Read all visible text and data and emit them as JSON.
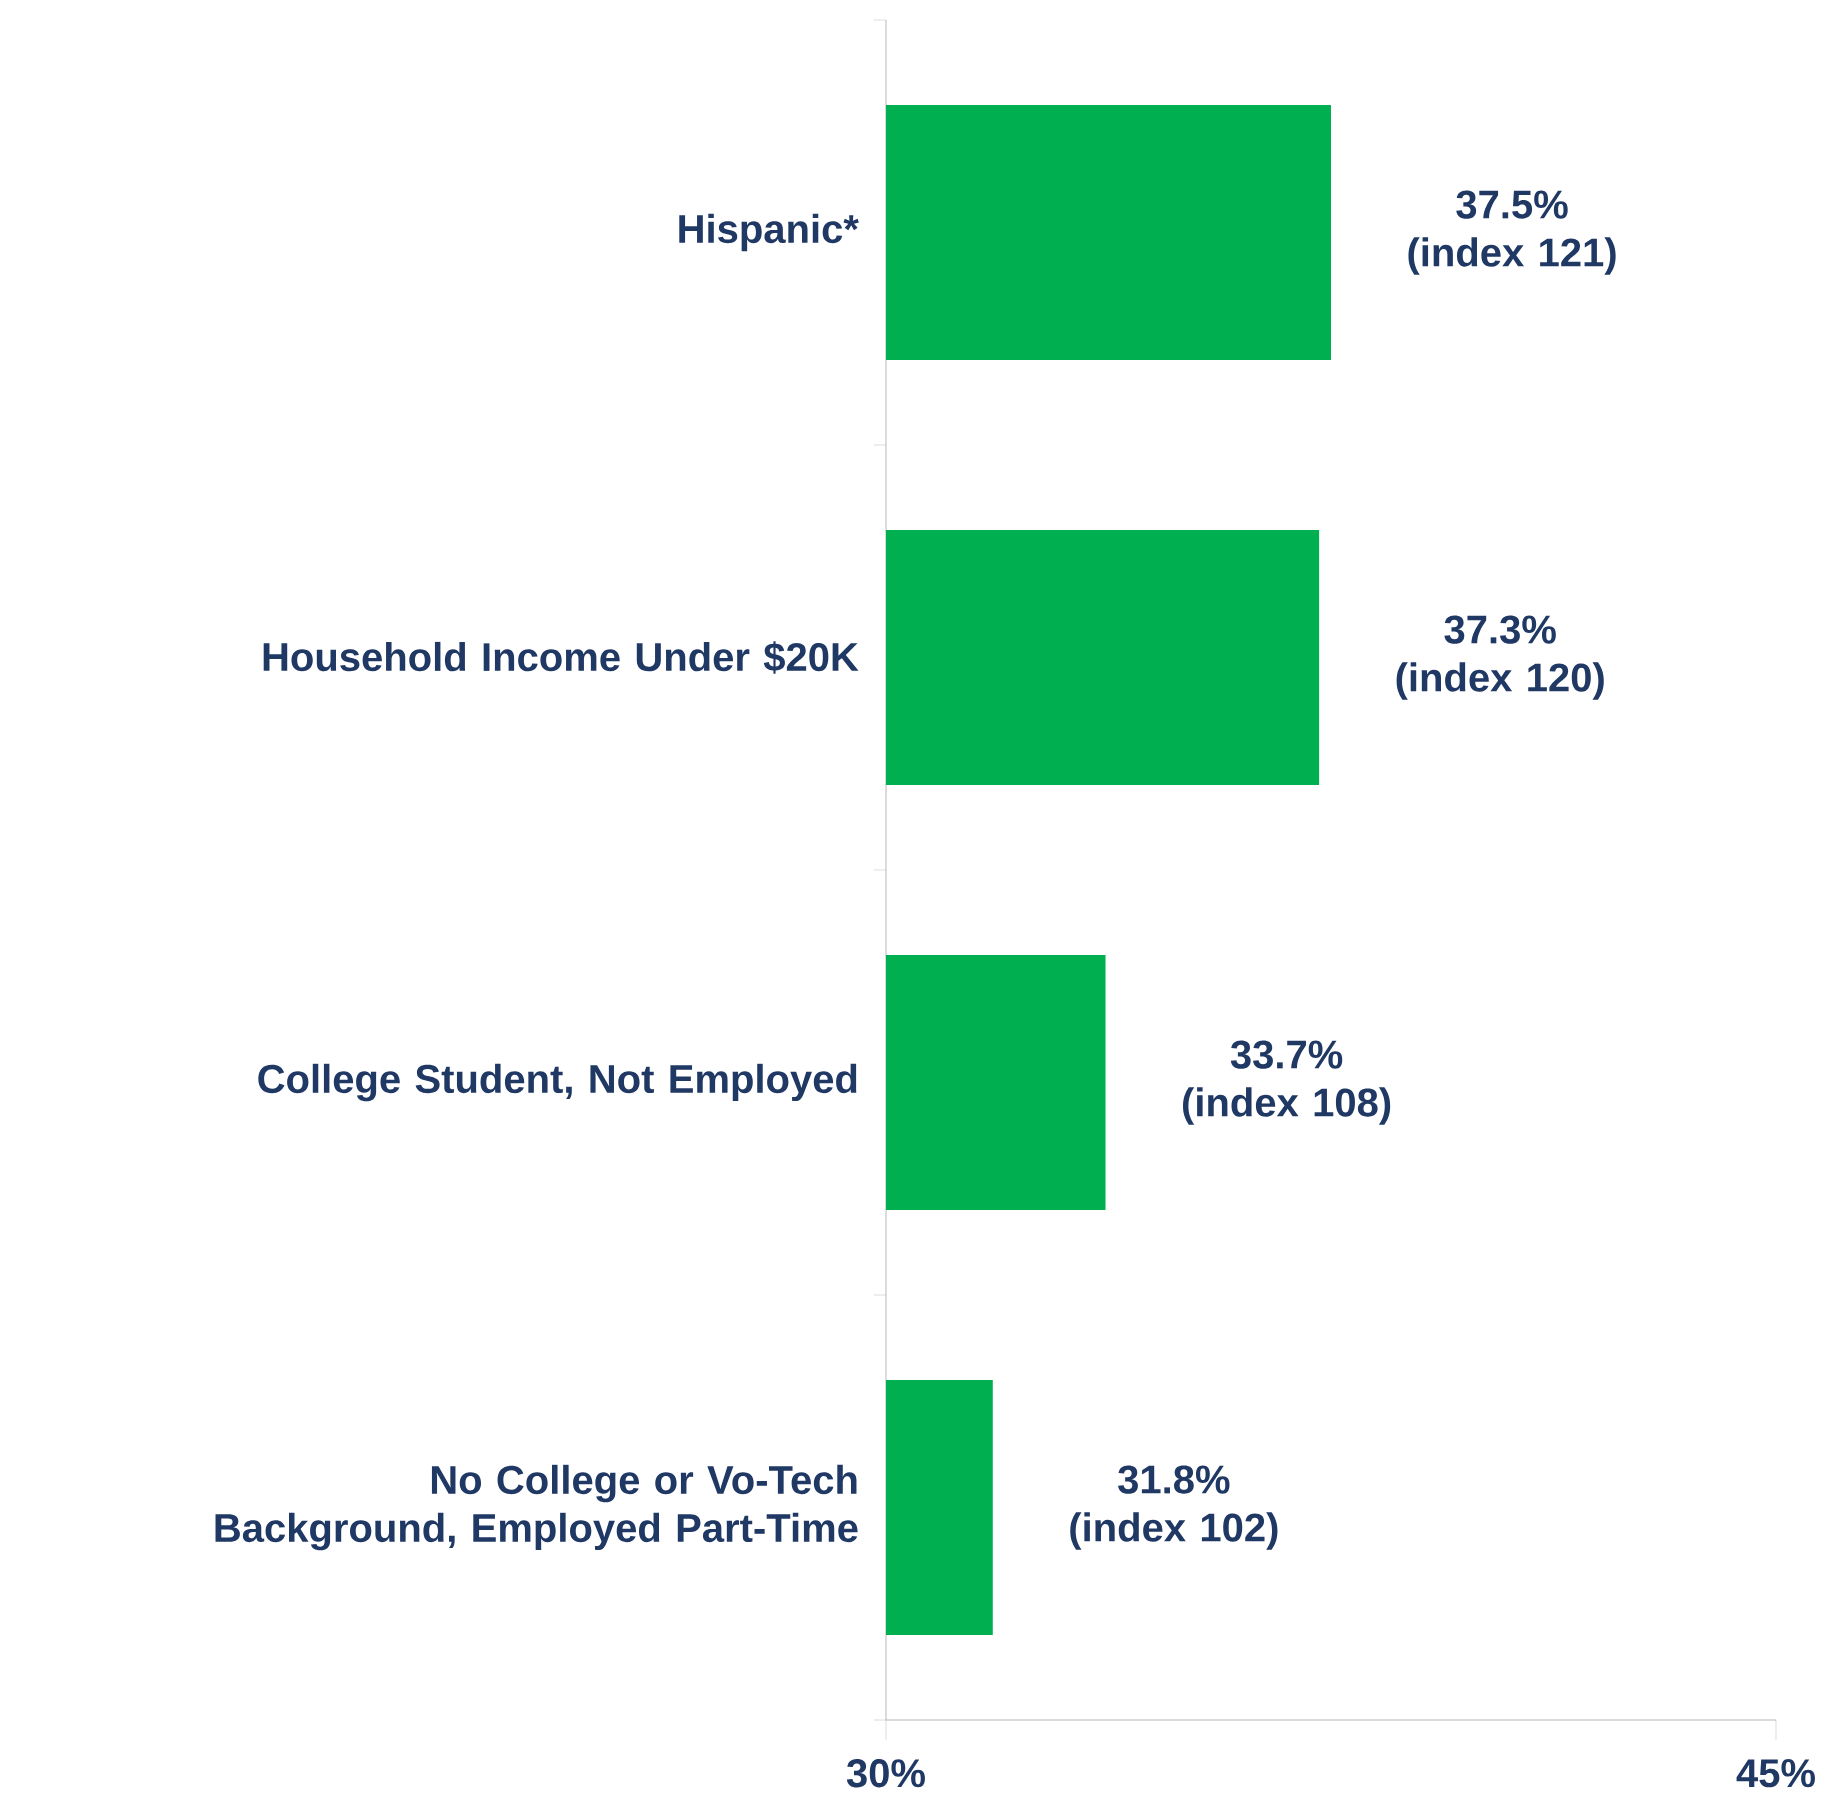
{
  "chart_data": {
    "type": "bar",
    "orientation": "horizontal",
    "categories": [
      "Hispanic*",
      "Household Income Under $20K",
      "College Student, Not Employed",
      "No College or Vo-Tech Background, Employed Part-Time"
    ],
    "values": [
      37.5,
      37.3,
      33.7,
      31.8
    ],
    "value_labels": [
      "37.5% (index 121)",
      "37.3% (index 120)",
      "33.7% (index 108)",
      "31.8% (index 102)"
    ],
    "color": "#00b050",
    "xlim": [
      30,
      45
    ],
    "xticks": [
      {
        "value": 30,
        "label": "30%"
      },
      {
        "value": 45,
        "label": "45%"
      }
    ]
  }
}
